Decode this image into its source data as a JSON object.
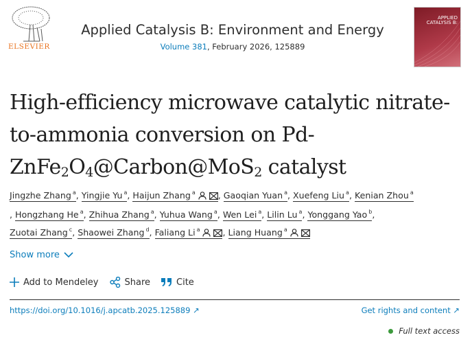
{
  "publisher": {
    "name": "ELSEVIER",
    "color": "#e9711c"
  },
  "journal": {
    "title": "Applied Catalysis B: Environment and Energy",
    "volume": "Volume 381",
    "details": ", February 2026, 125889",
    "cover_text": "APPLIED CATALYSIS B:"
  },
  "article": {
    "title_parts": [
      "High-efficiency microwave catalytic nitrate-to-ammonia conversion on Pd-ZnFe",
      "2",
      "O",
      "4",
      "@Carbon@MoS",
      "2",
      " catalyst"
    ]
  },
  "authors": [
    {
      "name": "Jingzhe Zhang",
      "sup": "a"
    },
    {
      "name": "Yingjie Yu",
      "sup": "a"
    },
    {
      "name": "Haijun Zhang",
      "sup": "a",
      "person": true,
      "mail": true
    },
    {
      "name": "Gaoqian Yuan",
      "sup": "a"
    },
    {
      "name": "Xuefeng Liu",
      "sup": "a"
    },
    {
      "name": "Kenian Zhou",
      "sup": "a"
    },
    {
      "name": "Hongzhang He",
      "sup": "a"
    },
    {
      "name": "Zhihua Zhang",
      "sup": "a"
    },
    {
      "name": "Yuhua Wang",
      "sup": "a"
    },
    {
      "name": "Wen Lei",
      "sup": "a"
    },
    {
      "name": "Lilin Lu",
      "sup": "a"
    },
    {
      "name": "Yonggang Yao",
      "sup": "b"
    },
    {
      "name": "Zuotai Zhang",
      "sup": "c"
    },
    {
      "name": "Shaowei Zhang",
      "sup": "d"
    },
    {
      "name": "Faliang Li",
      "sup": "a",
      "person": true,
      "mail": true
    },
    {
      "name": "Liang Huang",
      "sup": "a",
      "person": true,
      "mail": true
    }
  ],
  "show_more": "Show more",
  "actions": {
    "mendeley": "Add to Mendeley",
    "share": "Share",
    "cite": "Cite"
  },
  "doi": "https://doi.org/10.1016/j.apcatb.2025.125889 ↗",
  "rights": "Get rights and content ↗",
  "access": "Full text access",
  "colors": {
    "link": "#0c7dbb",
    "access_dot": "#3d9a3d"
  }
}
